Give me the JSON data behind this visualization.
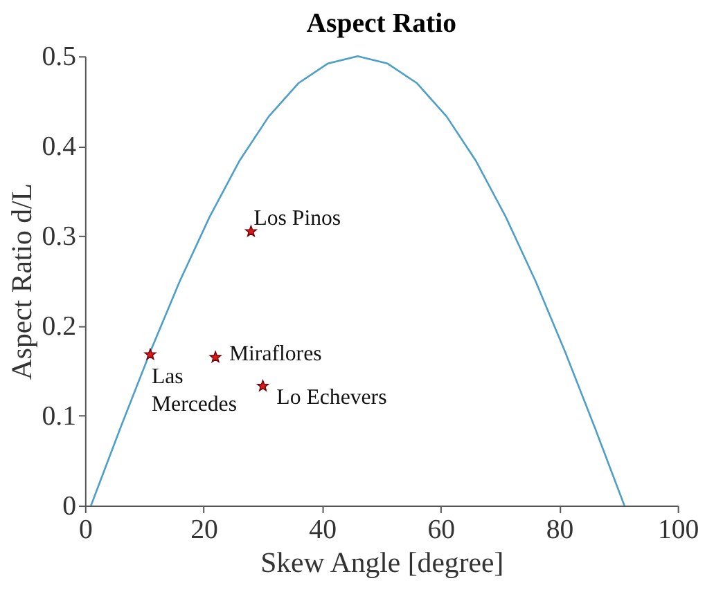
{
  "chart_data": {
    "type": "scatter",
    "title": "Aspect Ratio",
    "xlabel": "Skew Angle [degree]",
    "ylabel": "Aspect Ratio d/L",
    "xlim": [
      0,
      100
    ],
    "xticks": [
      0,
      20,
      40,
      60,
      80,
      100
    ],
    "ylim": [
      0,
      0.5
    ],
    "yticks": [
      0,
      0.1,
      0.2,
      0.3,
      0.4,
      0.5
    ],
    "grid": false,
    "series": [
      {
        "type": "line",
        "color": "#4d9ec9",
        "marker": "none",
        "line_style": "solid",
        "x": [
          1,
          6,
          11,
          16,
          21,
          26,
          31,
          36,
          41,
          46,
          51,
          56,
          61,
          66,
          71,
          76,
          81,
          86,
          91
        ],
        "values": [
          0,
          0.087,
          0.171,
          0.25,
          0.321,
          0.383,
          0.433,
          0.47,
          0.492,
          0.5,
          0.492,
          0.47,
          0.433,
          0.383,
          0.321,
          0.25,
          0.171,
          0.087,
          0
        ]
      },
      {
        "color": "#d7191c",
        "marker": "star",
        "x": [
          11,
          22,
          28,
          30
        ],
        "values": [
          0.168,
          0.165,
          0.305,
          0.133
        ]
      }
    ],
    "annotations": [
      {
        "text": "Las\nMercedes",
        "x": 11,
        "y": 0.168
      },
      {
        "text": "Miraflores",
        "x": 22,
        "y": 0.165
      },
      {
        "text": "Los Pinos",
        "x": 28,
        "y": 0.305
      },
      {
        "text": "Lo Echevers",
        "x": 30,
        "y": 0.133
      }
    ]
  }
}
